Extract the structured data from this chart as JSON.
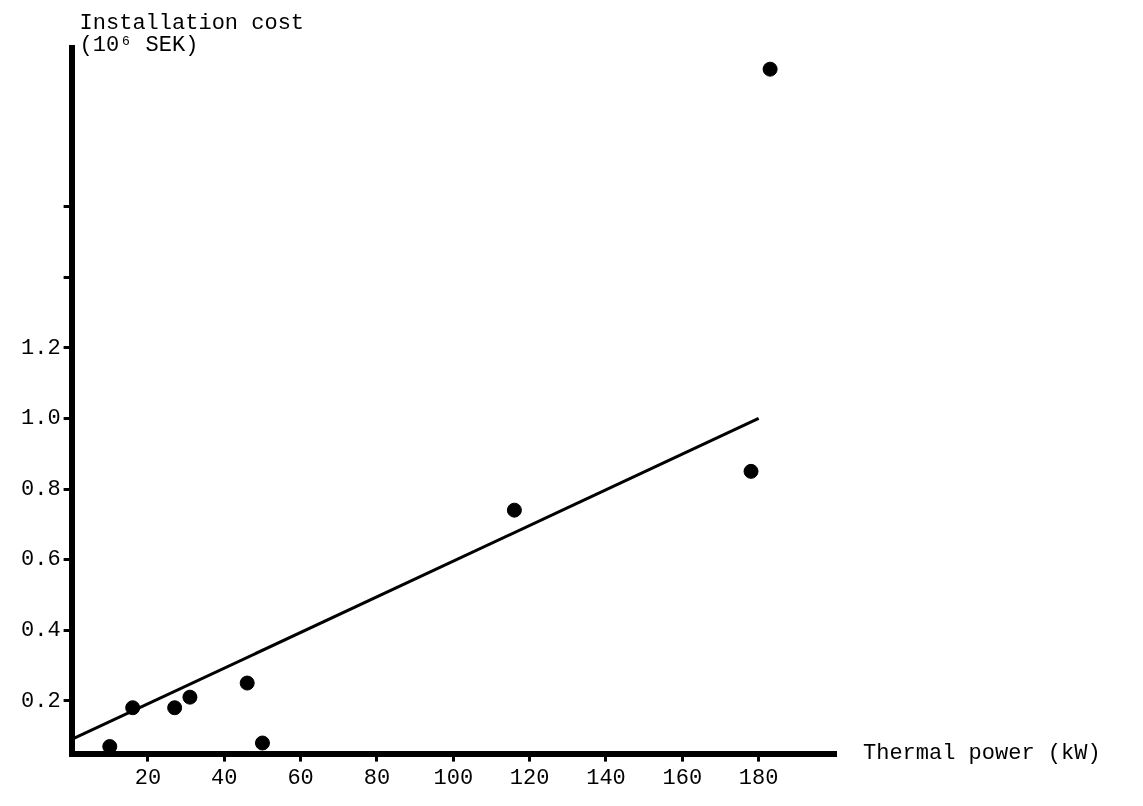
{
  "chart_data": {
    "type": "scatter",
    "xlabel": "Thermal power (kW)",
    "ylabel": "Installation cost (10⁶ SEK)",
    "xlim": [
      0,
      200
    ],
    "xticks": [
      20,
      40,
      60,
      80,
      100,
      120,
      140,
      160,
      180
    ],
    "ylim": [
      0.05,
      2.05
    ],
    "yticks": [
      0.2,
      0.4,
      0.6,
      0.8,
      {
        "value": 1.0,
        "label": "1.0"
      },
      1.2,
      {
        "value": 1.4,
        "label": null
      },
      {
        "value": 1.6,
        "label": null
      }
    ],
    "grid": false,
    "series": [
      {
        "marker": "circle",
        "color": "#000000",
        "x": [
          10,
          16,
          27,
          31,
          46,
          50,
          116,
          178,
          183
        ],
        "values": [
          0.07,
          0.18,
          0.18,
          0.21,
          0.25,
          0.08,
          0.74,
          0.85,
          1.99
        ]
      },
      {
        "type": "line",
        "color": "#000000",
        "x": [
          0,
          180
        ],
        "values": [
          0.09,
          1.0
        ]
      }
    ]
  }
}
